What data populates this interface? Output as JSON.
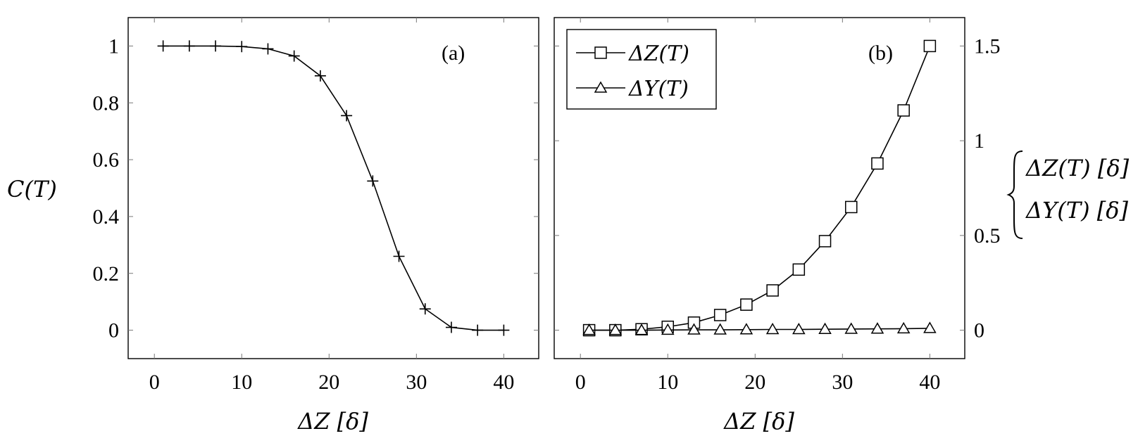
{
  "chart_data": [
    {
      "type": "line",
      "panel_label": "(a)",
      "xlabel": "ΔZ [δ]",
      "ylabel": "C(T)",
      "xlim": [
        -3,
        44
      ],
      "ylim": [
        -0.1,
        1.1
      ],
      "xticks": [
        0,
        10,
        20,
        30,
        40
      ],
      "yticks": [
        0,
        0.2,
        0.4,
        0.6,
        0.8,
        1
      ],
      "xtick_labels": [
        "0",
        "10",
        "20",
        "30",
        "40"
      ],
      "ytick_labels": [
        "0",
        "0.2",
        "0.4",
        "0.6",
        "0.8",
        "1"
      ],
      "grid": false,
      "series": [
        {
          "marker": "plus",
          "x": [
            1,
            4,
            7,
            10,
            13,
            16,
            19,
            22,
            25,
            28,
            31,
            34,
            37,
            40
          ],
          "y": [
            1.0,
            1.0,
            1.0,
            0.998,
            0.99,
            0.965,
            0.895,
            0.755,
            0.525,
            0.26,
            0.075,
            0.01,
            0.0,
            0.0
          ]
        }
      ]
    },
    {
      "type": "line",
      "panel_label": "(b)",
      "xlabel": "ΔZ [δ]",
      "ylabel_top": "ΔZ(T) [δ]",
      "ylabel_bottom": "ΔY(T) [δ]",
      "y_axis_side": "right",
      "xlim": [
        -3,
        44
      ],
      "ylim": [
        -0.15,
        1.65
      ],
      "xticks": [
        0,
        10,
        20,
        30,
        40
      ],
      "yticks": [
        0,
        0.5,
        1,
        1.5
      ],
      "xtick_labels": [
        "0",
        "10",
        "20",
        "30",
        "40"
      ],
      "ytick_labels": [
        "0",
        "0.5",
        "1",
        "1.5"
      ],
      "grid": false,
      "legend_position": "top-left",
      "series": [
        {
          "name": "ΔZ(T)",
          "marker": "square",
          "x": [
            1,
            4,
            7,
            10,
            13,
            16,
            19,
            22,
            25,
            28,
            31,
            34,
            37,
            40
          ],
          "y": [
            0.0,
            0.0,
            0.005,
            0.018,
            0.04,
            0.08,
            0.135,
            0.21,
            0.32,
            0.47,
            0.65,
            0.88,
            1.16,
            1.5
          ]
        },
        {
          "name": "ΔY(T)",
          "marker": "triangle",
          "x": [
            1,
            4,
            7,
            10,
            13,
            16,
            19,
            22,
            25,
            28,
            31,
            34,
            37,
            40
          ],
          "y": [
            0.0,
            0.0,
            0.0,
            0.001,
            0.002,
            0.002,
            0.003,
            0.004,
            0.004,
            0.005,
            0.006,
            0.007,
            0.008,
            0.01
          ]
        }
      ]
    }
  ]
}
